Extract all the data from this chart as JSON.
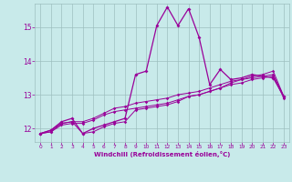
{
  "background_color": "#c8eaea",
  "grid_color": "#9dbfbf",
  "line_color": "#990099",
  "xlabel": "Windchill (Refroidissement éolien,°C)",
  "xlim": [
    -0.5,
    23.5
  ],
  "ylim": [
    11.6,
    15.7
  ],
  "yticks": [
    12,
    13,
    14,
    15
  ],
  "xticks": [
    0,
    1,
    2,
    3,
    4,
    5,
    6,
    7,
    8,
    9,
    10,
    11,
    12,
    13,
    14,
    15,
    16,
    17,
    18,
    19,
    20,
    21,
    22,
    23
  ],
  "series": [
    [
      11.85,
      11.9,
      12.15,
      12.2,
      11.85,
      11.9,
      12.05,
      12.15,
      12.2,
      12.55,
      12.6,
      12.65,
      12.7,
      12.8,
      12.95,
      13.0,
      13.1,
      13.2,
      13.35,
      13.45,
      13.55,
      13.6,
      13.7,
      12.95
    ],
    [
      11.85,
      11.95,
      12.15,
      12.2,
      12.2,
      12.3,
      12.45,
      12.6,
      12.65,
      12.75,
      12.8,
      12.85,
      12.9,
      13.0,
      13.05,
      13.1,
      13.2,
      13.3,
      13.4,
      13.45,
      13.5,
      13.55,
      13.6,
      12.95
    ],
    [
      11.85,
      11.9,
      12.1,
      12.15,
      12.15,
      12.25,
      12.4,
      12.5,
      12.55,
      12.6,
      12.65,
      12.7,
      12.75,
      12.85,
      12.95,
      13.0,
      13.1,
      13.2,
      13.3,
      13.35,
      13.45,
      13.5,
      13.55,
      12.9
    ],
    [
      11.85,
      11.95,
      12.2,
      12.3,
      11.85,
      12.0,
      12.1,
      12.2,
      12.3,
      13.6,
      13.7,
      15.05,
      15.6,
      15.05,
      15.55,
      14.7,
      13.3,
      13.75,
      13.45,
      13.5,
      13.6,
      13.55,
      13.5,
      12.95
    ]
  ]
}
